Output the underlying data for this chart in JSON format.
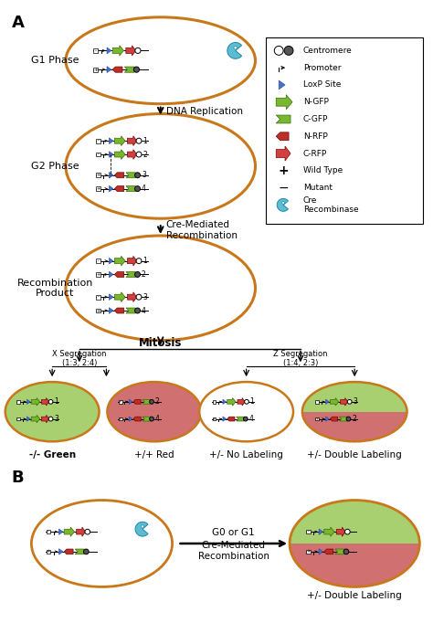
{
  "bg_color": "#ffffff",
  "cell_border_color": "#c8781a",
  "green_fill": "#a8d070",
  "red_fill": "#d07070",
  "section_A_label": "A",
  "section_B_label": "B",
  "g1_label": "G1 Phase",
  "g2_label": "G2 Phase",
  "recomb_label": "Recombination\nProduct",
  "dna_rep_label": "DNA Replication",
  "cre_med_label": "Cre-Mediated\nRecombination",
  "mitosis_label": "Mitosis",
  "x_seg_label": "X Segregation\n(1:3, 2:4)",
  "z_seg_label": "Z Segregation\n(1:4, 2:3)",
  "outcomes": [
    "-/- Green",
    "+/+ Red",
    "+/- No Labeling",
    "+/- Double Labeling"
  ],
  "g0g1_label": "G0 or G1",
  "cre_med2_label": "Cre-Mediated\nRecombination",
  "double_label": "+/- Double Labeling",
  "ngfp_color": "#78b830",
  "cgfp_color": "#78b830",
  "nrfp_color": "#b83028",
  "crfp_color": "#d04040",
  "loxp_color": "#4472c4",
  "cre_color": "#5dbcd2"
}
